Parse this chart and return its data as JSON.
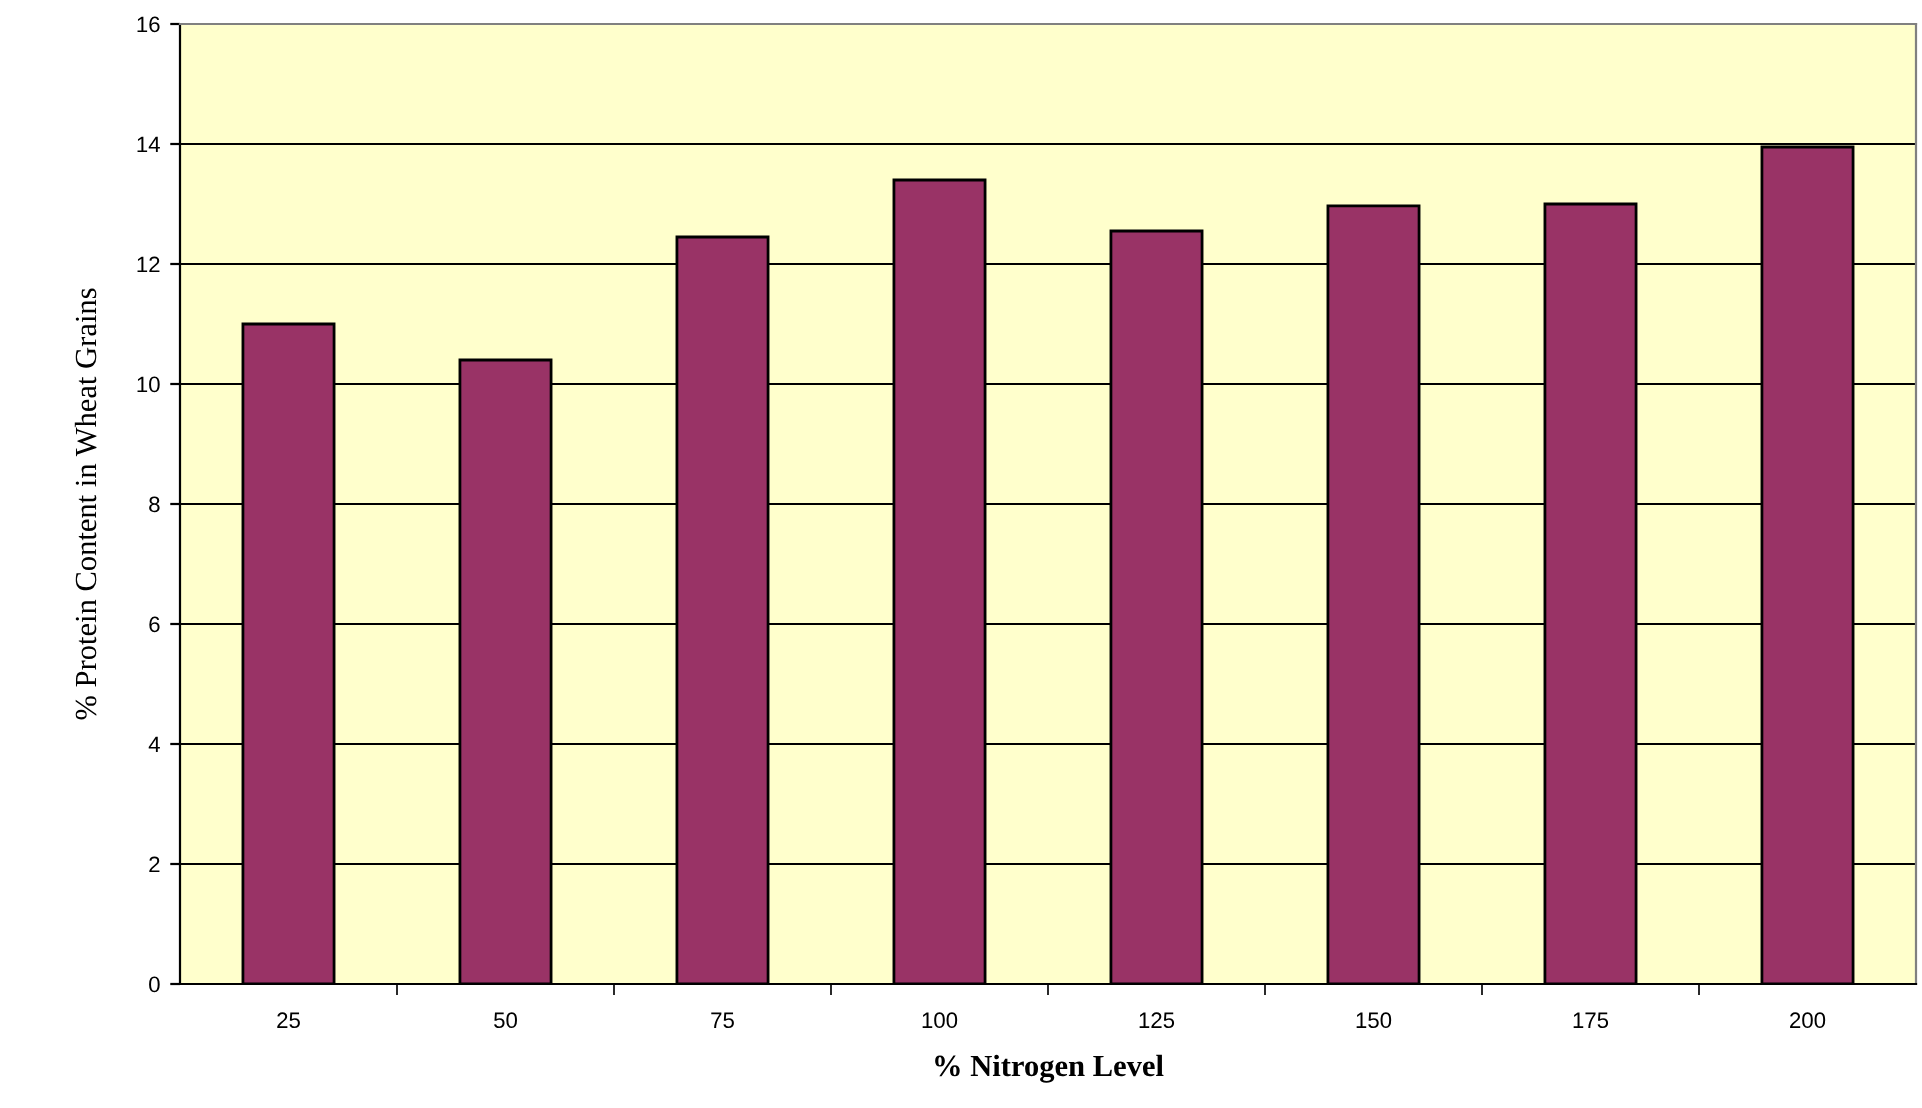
{
  "chart_data": {
    "type": "bar",
    "xlabel": "% Nitrogen Level",
    "ylabel": "% Protein Content in Wheat Grains",
    "categories": [
      "25",
      "50",
      "75",
      "100",
      "125",
      "150",
      "175",
      "200"
    ],
    "values": [
      11.0,
      10.4,
      12.45,
      13.4,
      12.55,
      12.97,
      13.0,
      13.95
    ],
    "color": "#993366",
    "ylim": [
      0,
      16
    ],
    "yticks": [
      0,
      2,
      4,
      6,
      8,
      10,
      12,
      14,
      16
    ],
    "grid": "y",
    "legend": false
  }
}
